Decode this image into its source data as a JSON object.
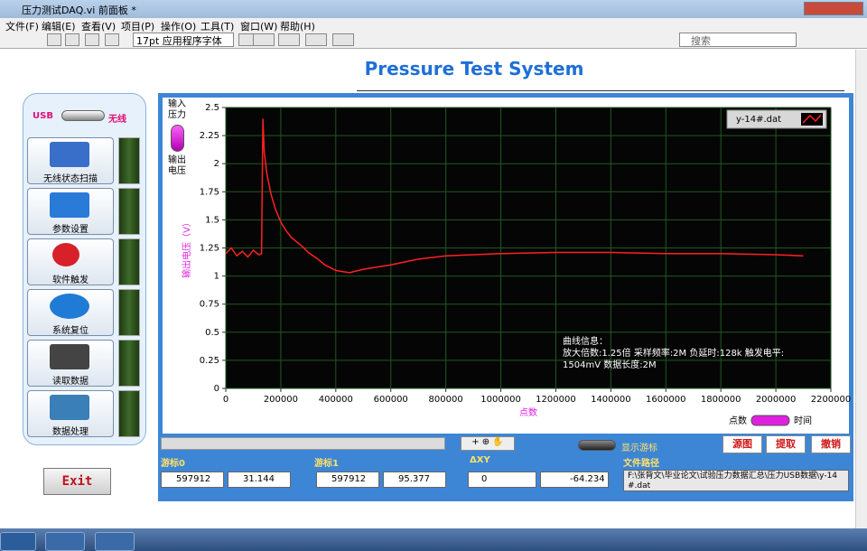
{
  "window": {
    "title": "压力测试DAQ.vi 前面板 *"
  },
  "menu": [
    "文件(F)",
    "编辑(E)",
    "查看(V)",
    "项目(P)",
    "操作(O)",
    "工具(T)",
    "窗口(W)",
    "帮助(H)"
  ],
  "toolbar": {
    "font": "17pt 应用程序字体",
    "search": "搜索"
  },
  "panel": {
    "title": "Pressure Test System"
  },
  "sidebar": {
    "switch_left": "USB",
    "switch_right": "无线",
    "buttons": [
      "无线状态扫描",
      "参数设置",
      "软件触发",
      "系统复位",
      "读取数据",
      "数据处理"
    ],
    "exit": "Exit"
  },
  "input_toggle": {
    "top": "输入压力",
    "bottom": "输出电压"
  },
  "chart_data": {
    "type": "line",
    "y_label": "输出电压（V）",
    "x_label": "点数",
    "xlim": [
      0,
      2200000
    ],
    "xticks": [
      0,
      200000,
      400000,
      600000,
      800000,
      1000000,
      1200000,
      1400000,
      1600000,
      1800000,
      2000000,
      2200000
    ],
    "ylim": [
      0,
      2.5
    ],
    "yticks": [
      0,
      0.25,
      0.5,
      0.75,
      1,
      1.25,
      1.5,
      1.75,
      2,
      2.25,
      2.5
    ],
    "grid": true,
    "x": [
      0,
      20000,
      40000,
      60000,
      80000,
      100000,
      120000,
      130000,
      135000,
      140000,
      150000,
      165000,
      180000,
      200000,
      220000,
      240000,
      260000,
      280000,
      300000,
      330000,
      360000,
      400000,
      450000,
      500000,
      550000,
      600000,
      700000,
      800000,
      900000,
      1000000,
      1200000,
      1400000,
      1600000,
      1800000,
      2000000,
      2100000
    ],
    "series": [
      {
        "name": "y-14#.dat",
        "color": "#ff2020",
        "values": [
          1.2,
          1.25,
          1.18,
          1.22,
          1.17,
          1.23,
          1.19,
          1.2,
          2.4,
          2.1,
          1.9,
          1.72,
          1.6,
          1.48,
          1.4,
          1.34,
          1.3,
          1.26,
          1.21,
          1.16,
          1.1,
          1.05,
          1.03,
          1.06,
          1.08,
          1.1,
          1.15,
          1.18,
          1.19,
          1.2,
          1.21,
          1.21,
          1.2,
          1.2,
          1.19,
          1.18
        ]
      }
    ],
    "annotation": [
      "曲线信息：",
      "放大倍数:1.25倍 采样频率:2M 负延时:128k 触发电平:",
      "1504mV 数据长度:2M"
    ],
    "mode_switch": [
      "点数",
      "时间"
    ]
  },
  "controls": {
    "scroll_icons": "+ ⊕ ✋",
    "show_cursor": "显示游标",
    "buttons": [
      "源图",
      "提取",
      "撤销"
    ],
    "cursor0": {
      "label": "游标0",
      "x": "597912",
      "y": "31.144"
    },
    "cursor1": {
      "label": "游标1",
      "x": "597912",
      "y": "95.377"
    },
    "delta": {
      "label": "ΔXY",
      "x": "0",
      "y": "-64.234"
    },
    "file": {
      "label": "文件路径",
      "path": "F:\\张背文\\毕业论文\\试验压力数据汇总\\压力USB数据\\y-14#.dat"
    }
  }
}
